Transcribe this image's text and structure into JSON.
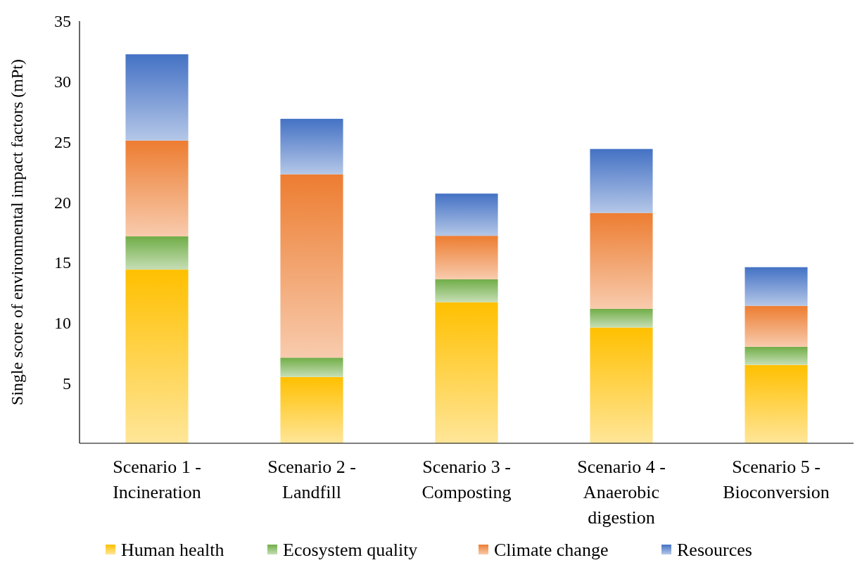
{
  "chart_data": {
    "type": "bar",
    "stacked": true,
    "ylabel": "Single score of environmental impact factors (mPt)",
    "categories": [
      "Scenario 1 - Incineration",
      "Scenario 2 - Landfill",
      "Scenario 3 - Composting",
      "Scenario 4 - Anaerobic digestion",
      "Scenario 5 - Bioconversion"
    ],
    "series": [
      {
        "name": "Human health",
        "color": "#ffc000",
        "values": [
          14.4,
          5.5,
          11.7,
          9.6,
          6.5
        ]
      },
      {
        "name": "Ecosystem quality",
        "color": "#70ad47",
        "values": [
          2.75,
          1.6,
          1.9,
          1.55,
          1.5
        ]
      },
      {
        "name": "Climate change",
        "color": "#ed7d31",
        "values": [
          7.95,
          15.2,
          3.6,
          7.95,
          3.4
        ]
      },
      {
        "name": "Resources",
        "color": "#4472c4",
        "values": [
          7.15,
          4.6,
          3.5,
          5.3,
          3.2
        ]
      }
    ],
    "ylim": [
      0,
      35
    ],
    "yticks": [
      5,
      10,
      15,
      20,
      25,
      30,
      35
    ],
    "grid": false,
    "legend": "bottom"
  }
}
